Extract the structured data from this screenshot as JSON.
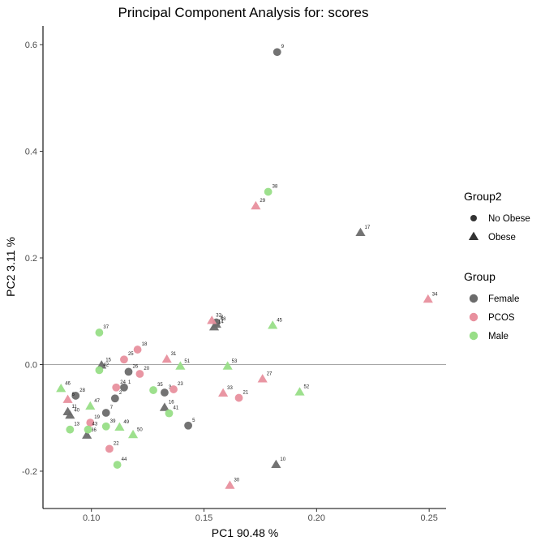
{
  "chart_data": {
    "type": "scatter",
    "title": "Principal Component Analysis for:  scores",
    "xlabel": "PC1 90.48 %",
    "ylabel": "PC2 3.11 %",
    "xlim": [
      0.0785,
      0.2575
    ],
    "ylim": [
      -0.27,
      0.635
    ],
    "x_ticks": [
      0.1,
      0.15,
      0.2,
      0.25
    ],
    "x_tick_labels": [
      "0.10",
      "0.15",
      "0.20",
      "0.25"
    ],
    "y_ticks": [
      -0.2,
      0.0,
      0.2,
      0.4,
      0.6
    ],
    "y_tick_labels": [
      "-0.2",
      "0.0",
      "0.2",
      "0.4",
      "0.6"
    ],
    "hline": 0,
    "grid": false,
    "legend_position": "right",
    "colors": {
      "Female": "#6b6b6b",
      "PCOS": "#e8909e",
      "Male": "#98de87"
    },
    "legends": [
      {
        "title": "Group2",
        "items": [
          {
            "label": "No Obese",
            "shape": "circle"
          },
          {
            "label": "Obese",
            "shape": "triangle"
          }
        ]
      },
      {
        "title": "Group",
        "items": [
          {
            "label": "Female",
            "color": "#6b6b6b"
          },
          {
            "label": "PCOS",
            "color": "#e8909e"
          },
          {
            "label": "Male",
            "color": "#98de87"
          }
        ]
      }
    ],
    "points": [
      {
        "label": "9",
        "x": 0.1825,
        "y": 0.586,
        "group": "Female",
        "group2": "No Obese"
      },
      {
        "label": "17",
        "x": 0.2195,
        "y": 0.247,
        "group": "Female",
        "group2": "Obese"
      },
      {
        "label": "10",
        "x": 0.182,
        "y": -0.188,
        "group": "Female",
        "group2": "Obese"
      },
      {
        "label": "8",
        "x": 0.1555,
        "y": 0.079,
        "group": "Female",
        "group2": "No Obese"
      },
      {
        "label": "48",
        "x": 0.1555,
        "y": 0.075,
        "group": "Female",
        "group2": "Obese"
      },
      {
        "label": "14",
        "x": 0.1545,
        "y": 0.07,
        "group": "Female",
        "group2": "Obese"
      },
      {
        "label": "15",
        "x": 0.1045,
        "y": -0.0015,
        "group": "Female",
        "group2": "Obese"
      },
      {
        "label": "1",
        "x": 0.1145,
        "y": -0.043,
        "group": "Female",
        "group2": "No Obese"
      },
      {
        "label": "26",
        "x": 0.1165,
        "y": -0.0135,
        "group": "Female",
        "group2": "No Obese"
      },
      {
        "label": "28",
        "x": 0.093,
        "y": -0.0585,
        "group": "Female",
        "group2": "No Obese"
      },
      {
        "label": "40",
        "x": 0.0905,
        "y": -0.0955,
        "group": "Female",
        "group2": "Obese"
      },
      {
        "label": "11",
        "x": 0.0895,
        "y": -0.089,
        "group": "Female",
        "group2": "Obese"
      },
      {
        "label": "36",
        "x": 0.098,
        "y": -0.133,
        "group": "Female",
        "group2": "Obese"
      },
      {
        "label": "2",
        "x": 0.1105,
        "y": -0.0635,
        "group": "Female",
        "group2": "No Obese"
      },
      {
        "label": "7",
        "x": 0.1065,
        "y": -0.0905,
        "group": "Female",
        "group2": "No Obese"
      },
      {
        "label": "3",
        "x": 0.1325,
        "y": -0.0525,
        "group": "Female",
        "group2": "No Obese"
      },
      {
        "label": "16",
        "x": 0.1325,
        "y": -0.081,
        "group": "Female",
        "group2": "Obese"
      },
      {
        "label": "5",
        "x": 0.143,
        "y": -0.1145,
        "group": "Female",
        "group2": "No Obese"
      },
      {
        "label": "34",
        "x": 0.2495,
        "y": 0.122,
        "group": "PCOS",
        "group2": "Obese"
      },
      {
        "label": "29",
        "x": 0.173,
        "y": 0.297,
        "group": "PCOS",
        "group2": "Obese"
      },
      {
        "label": "32",
        "x": 0.1535,
        "y": 0.082,
        "group": "PCOS",
        "group2": "Obese"
      },
      {
        "label": "18",
        "x": 0.1205,
        "y": 0.028,
        "group": "PCOS",
        "group2": "No Obese"
      },
      {
        "label": "25",
        "x": 0.1145,
        "y": 0.0095,
        "group": "PCOS",
        "group2": "No Obese"
      },
      {
        "label": "31",
        "x": 0.1335,
        "y": 0.0095,
        "group": "PCOS",
        "group2": "Obese"
      },
      {
        "label": "20",
        "x": 0.1215,
        "y": -0.0175,
        "group": "PCOS",
        "group2": "No Obese"
      },
      {
        "label": "24",
        "x": 0.111,
        "y": -0.043,
        "group": "PCOS",
        "group2": "No Obese"
      },
      {
        "label": "23",
        "x": 0.1365,
        "y": -0.0465,
        "group": "PCOS",
        "group2": "No Obese"
      },
      {
        "label": "27",
        "x": 0.176,
        "y": -0.0275,
        "group": "PCOS",
        "group2": "Obese"
      },
      {
        "label": "33",
        "x": 0.1585,
        "y": -0.054,
        "group": "PCOS",
        "group2": "Obese"
      },
      {
        "label": "21",
        "x": 0.1655,
        "y": -0.0625,
        "group": "PCOS",
        "group2": "No Obese"
      },
      {
        "label": "6",
        "x": 0.0895,
        "y": -0.066,
        "group": "PCOS",
        "group2": "Obese"
      },
      {
        "label": "19",
        "x": 0.0995,
        "y": -0.109,
        "group": "PCOS",
        "group2": "No Obese"
      },
      {
        "label": "22",
        "x": 0.108,
        "y": -0.158,
        "group": "PCOS",
        "group2": "No Obese"
      },
      {
        "label": "30",
        "x": 0.1615,
        "y": -0.227,
        "group": "PCOS",
        "group2": "Obese"
      },
      {
        "label": "38",
        "x": 0.1785,
        "y": 0.324,
        "group": "Male",
        "group2": "No Obese"
      },
      {
        "label": "45",
        "x": 0.1805,
        "y": 0.073,
        "group": "Male",
        "group2": "Obese"
      },
      {
        "label": "37",
        "x": 0.1035,
        "y": 0.06,
        "group": "Male",
        "group2": "No Obese"
      },
      {
        "label": "51",
        "x": 0.1395,
        "y": -0.0035,
        "group": "Male",
        "group2": "Obese"
      },
      {
        "label": "53",
        "x": 0.1605,
        "y": -0.0035,
        "group": "Male",
        "group2": "Obese"
      },
      {
        "label": "42",
        "x": 0.1035,
        "y": -0.0105,
        "group": "Male",
        "group2": "No Obese"
      },
      {
        "label": "46",
        "x": 0.0865,
        "y": -0.0455,
        "group": "Male",
        "group2": "Obese"
      },
      {
        "label": "35",
        "x": 0.1275,
        "y": -0.048,
        "group": "Male",
        "group2": "No Obese"
      },
      {
        "label": "47",
        "x": 0.0995,
        "y": -0.0785,
        "group": "Male",
        "group2": "Obese"
      },
      {
        "label": "52",
        "x": 0.1925,
        "y": -0.052,
        "group": "Male",
        "group2": "Obese"
      },
      {
        "label": "41",
        "x": 0.1345,
        "y": -0.0915,
        "group": "Male",
        "group2": "No Obese"
      },
      {
        "label": "13",
        "x": 0.0905,
        "y": -0.122,
        "group": "Male",
        "group2": "No Obese"
      },
      {
        "label": "43",
        "x": 0.0985,
        "y": -0.122,
        "group": "Male",
        "group2": "No Obese"
      },
      {
        "label": "39",
        "x": 0.1065,
        "y": -0.116,
        "group": "Male",
        "group2": "No Obese"
      },
      {
        "label": "49",
        "x": 0.1125,
        "y": -0.118,
        "group": "Male",
        "group2": "Obese"
      },
      {
        "label": "50",
        "x": 0.1185,
        "y": -0.132,
        "group": "Male",
        "group2": "Obese"
      },
      {
        "label": "44",
        "x": 0.1115,
        "y": -0.188,
        "group": "Male",
        "group2": "No Obese"
      }
    ]
  }
}
